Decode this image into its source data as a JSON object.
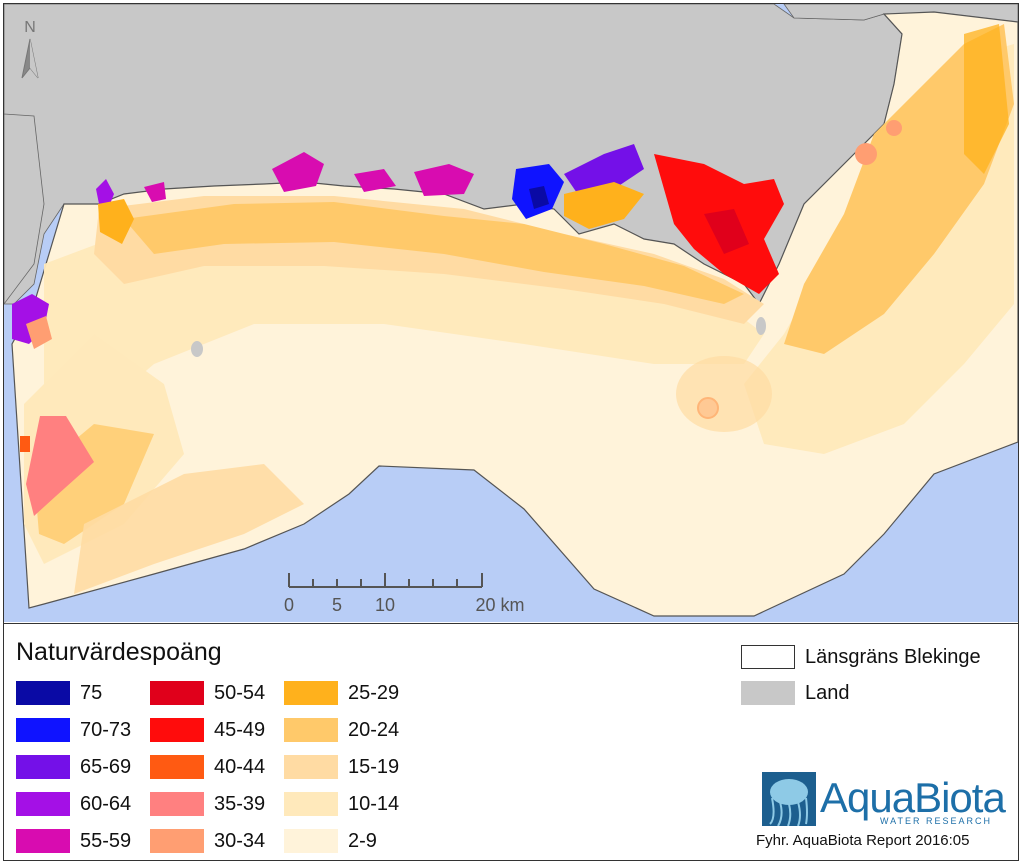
{
  "north_label": "N",
  "scale_bar": {
    "ticks": [
      "0",
      "5",
      "10",
      "20 km"
    ]
  },
  "legend": {
    "title": "Naturvärdespoäng",
    "classes": [
      {
        "label": "75",
        "color": "#0a0aa5"
      },
      {
        "label": "70-73",
        "color": "#0f13ff"
      },
      {
        "label": "65-69",
        "color": "#7410e8"
      },
      {
        "label": "60-64",
        "color": "#a410e6"
      },
      {
        "label": "55-59",
        "color": "#d80cb0"
      },
      {
        "label": "50-54",
        "color": "#e0001b"
      },
      {
        "label": "45-49",
        "color": "#ff0c0c"
      },
      {
        "label": "40-44",
        "color": "#ff5a12"
      },
      {
        "label": "35-39",
        "color": "#ff8080"
      },
      {
        "label": "30-34",
        "color": "#ff9e72"
      },
      {
        "label": "25-29",
        "color": "#ffb11c"
      },
      {
        "label": "20-24",
        "color": "#ffc96a"
      },
      {
        "label": "15-19",
        "color": "#ffdba3"
      },
      {
        "label": "10-14",
        "color": "#ffe9bb"
      },
      {
        "label": "2-9",
        "color": "#fff3da"
      }
    ],
    "extra": [
      {
        "label": "Länsgräns Blekinge",
        "style": "outline"
      },
      {
        "label": "Land",
        "color": "#c8c8c8"
      }
    ]
  },
  "logo": {
    "name": "AquaBiota",
    "tagline": "WATER RESEARCH"
  },
  "credit": "Fyhr. AquaBiota Report 2016:05",
  "colors": {
    "sea": "#b8cdf6",
    "land": "#c8c8c8",
    "border": "#555555"
  }
}
